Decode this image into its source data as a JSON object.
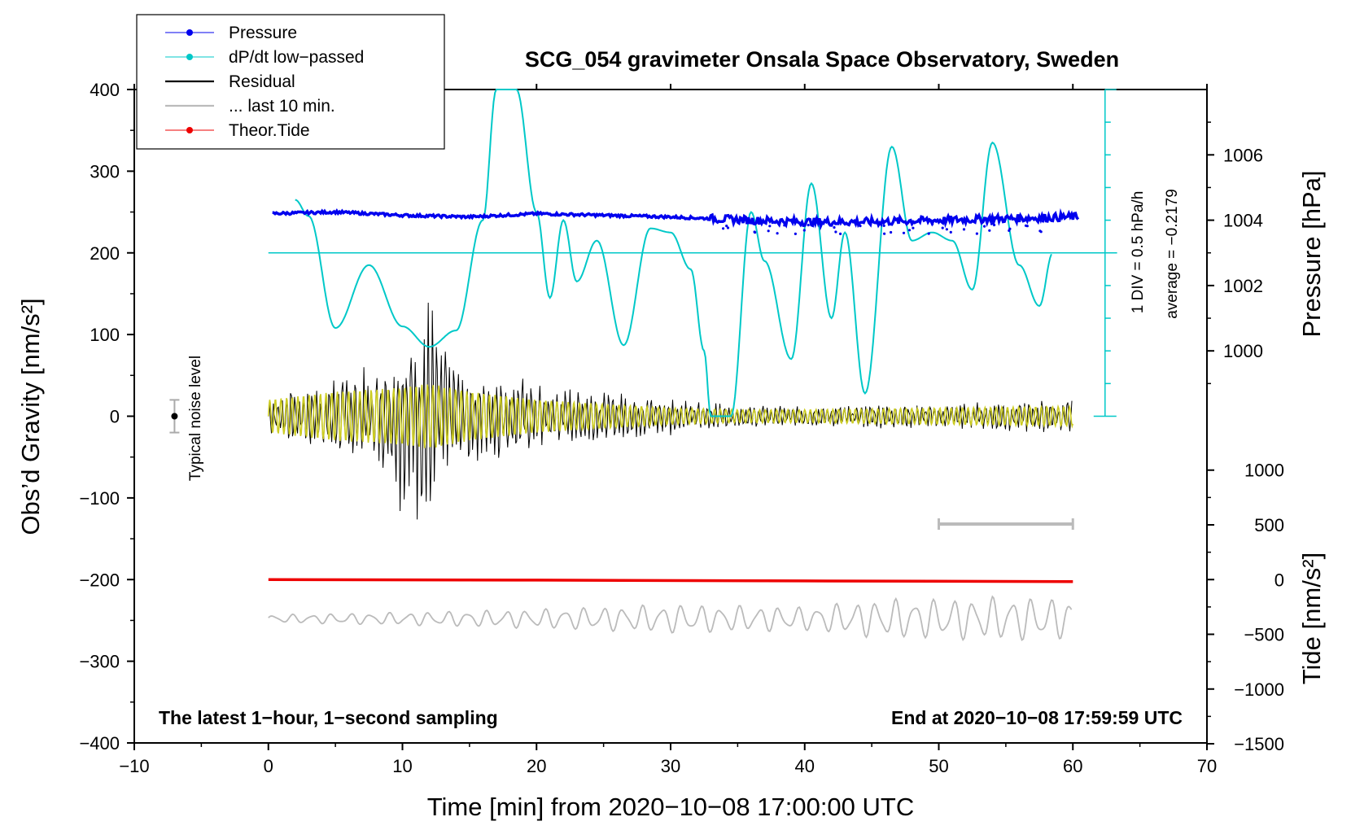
{
  "chart_data": {
    "type": "line",
    "title": "SCG_054 gravimeter Onsala Space Observatory, Sweden",
    "xlabel": "Time [min] from 2020−10−08 17:00:00 UTC",
    "ylabel": "Obs’d Gravity [nm/s²]",
    "y2label_pressure": "Pressure [hPa]",
    "y2label_tide": "Tide [nm/s²]",
    "xlim": [
      -10,
      70
    ],
    "ylim": [
      -400,
      400
    ],
    "x_ticks": [
      -10,
      0,
      10,
      20,
      30,
      40,
      50,
      60,
      70
    ],
    "x_tick_labels": [
      "−10",
      "0",
      "10",
      "20",
      "30",
      "40",
      "50",
      "60",
      "70"
    ],
    "y_ticks": [
      400,
      300,
      200,
      100,
      0,
      -100,
      -200,
      -300,
      -400
    ],
    "y_tick_labels": [
      "400",
      "300",
      "200",
      "100",
      "0",
      "−100",
      "−200",
      "−300",
      "−400"
    ],
    "pressure_axis": {
      "ticks": [
        1006,
        1004,
        1002,
        1000
      ],
      "tick_labels": [
        "1006",
        "1004",
        "1002",
        "1000"
      ],
      "hpa_per_grav_unit_note": "1004 hPa drawn at gravity 240, 2 hPa per 80 gravity units"
    },
    "tide_axis": {
      "ticks": [
        1000,
        500,
        0,
        -500,
        -1000,
        -1500
      ],
      "tick_labels": [
        "1000",
        "500",
        "0",
        "−500",
        "−1000",
        "−1500"
      ],
      "mapping_note": "tide 0 drawn at gravity -200; 500 nm/s2 per 67 gravity units"
    },
    "dpdt_annotation": {
      "div_label": "1 DIV = 0.5 hPa/h",
      "average_label": "average = −0.2179"
    },
    "legend": [
      {
        "label": "Pressure",
        "color": "#0000ee",
        "marker": true
      },
      {
        "label": "dP/dt low−passed",
        "color": "#00c8c8",
        "marker": true
      },
      {
        "label": "Residual",
        "color": "#000000",
        "marker": false
      },
      {
        "label": "... last 10 min.",
        "color": "#bbbbbb",
        "marker": false
      },
      {
        "label": "Theor.Tide",
        "color": "#ee0000",
        "marker": true
      }
    ],
    "noise_label": "Typical noise level",
    "noise_bar": {
      "x": -7,
      "center": 0,
      "half_range": 20
    },
    "last10_bar": {
      "x_start": 50,
      "x_end": 60
    },
    "bottom_left_note": "The latest 1−hour, 1−second sampling",
    "bottom_right_note": "End at 2020−10−08 17:59:59 UTC",
    "series": [
      {
        "name": "Pressure (hPa)",
        "color": "#0000ee",
        "x": [
          0,
          5,
          10,
          15,
          20,
          25,
          30,
          33,
          36,
          40,
          45,
          50,
          55,
          60
        ],
        "values": [
          1004.2,
          1004.25,
          1004.15,
          1004.1,
          1004.2,
          1004.15,
          1004.1,
          1004.05,
          1004.0,
          1003.95,
          1003.95,
          1004.0,
          1004.05,
          1004.1
        ]
      },
      {
        "name": "dP/dt low-passed (gravity-axis units)",
        "color": "#00c8c8",
        "baseline": 200,
        "x": [
          2,
          3,
          5,
          7.5,
          10,
          12,
          14,
          16,
          17,
          18.5,
          20,
          21,
          22,
          23,
          24.5,
          26.5,
          28.5,
          30,
          31.5,
          32.5,
          33,
          34.5,
          36,
          37,
          39,
          40.5,
          42,
          43,
          44.5,
          46.5,
          48,
          49.5,
          51,
          52.5,
          54,
          56,
          57.5,
          58.5
        ],
        "values": [
          265,
          245,
          108,
          185,
          110,
          85,
          105,
          240,
          400,
          400,
          250,
          145,
          240,
          165,
          215,
          87,
          230,
          225,
          180,
          80,
          0,
          0,
          250,
          190,
          70,
          285,
          120,
          225,
          28,
          330,
          215,
          225,
          215,
          155,
          335,
          185,
          135,
          200
        ]
      },
      {
        "name": "Residual",
        "color": "#000000",
        "amplitude_envelope_x": [
          0,
          5,
          9,
          10,
          12,
          15,
          20,
          25,
          30,
          34,
          40,
          46,
          50,
          55,
          60
        ],
        "amplitude_envelope": [
          25,
          50,
          70,
          130,
          150,
          65,
          45,
          30,
          25,
          15,
          12,
          15,
          15,
          20,
          20
        ]
      },
      {
        "name": "Fit (yellow)",
        "color": "#cccc22",
        "amplitude_envelope_x": [
          0,
          5,
          10,
          12,
          15,
          20,
          25,
          30,
          35,
          40,
          50,
          60
        ],
        "amplitude_envelope": [
          20,
          30,
          35,
          40,
          30,
          20,
          15,
          10,
          8,
          8,
          10,
          12
        ]
      },
      {
        "name": "... last 10 min.",
        "color": "#bbbbbb",
        "center": -248,
        "amplitude_envelope_x": [
          0,
          10,
          20,
          30,
          40,
          46,
          50,
          55,
          60
        ],
        "amplitude_envelope": [
          5,
          8,
          12,
          18,
          15,
          25,
          25,
          28,
          25
        ]
      },
      {
        "name": "Theor.Tide (nm/s2)",
        "color": "#ee0000",
        "x": [
          0,
          20,
          40,
          60
        ],
        "values": [
          0,
          -5,
          -12,
          -18
        ]
      }
    ]
  }
}
